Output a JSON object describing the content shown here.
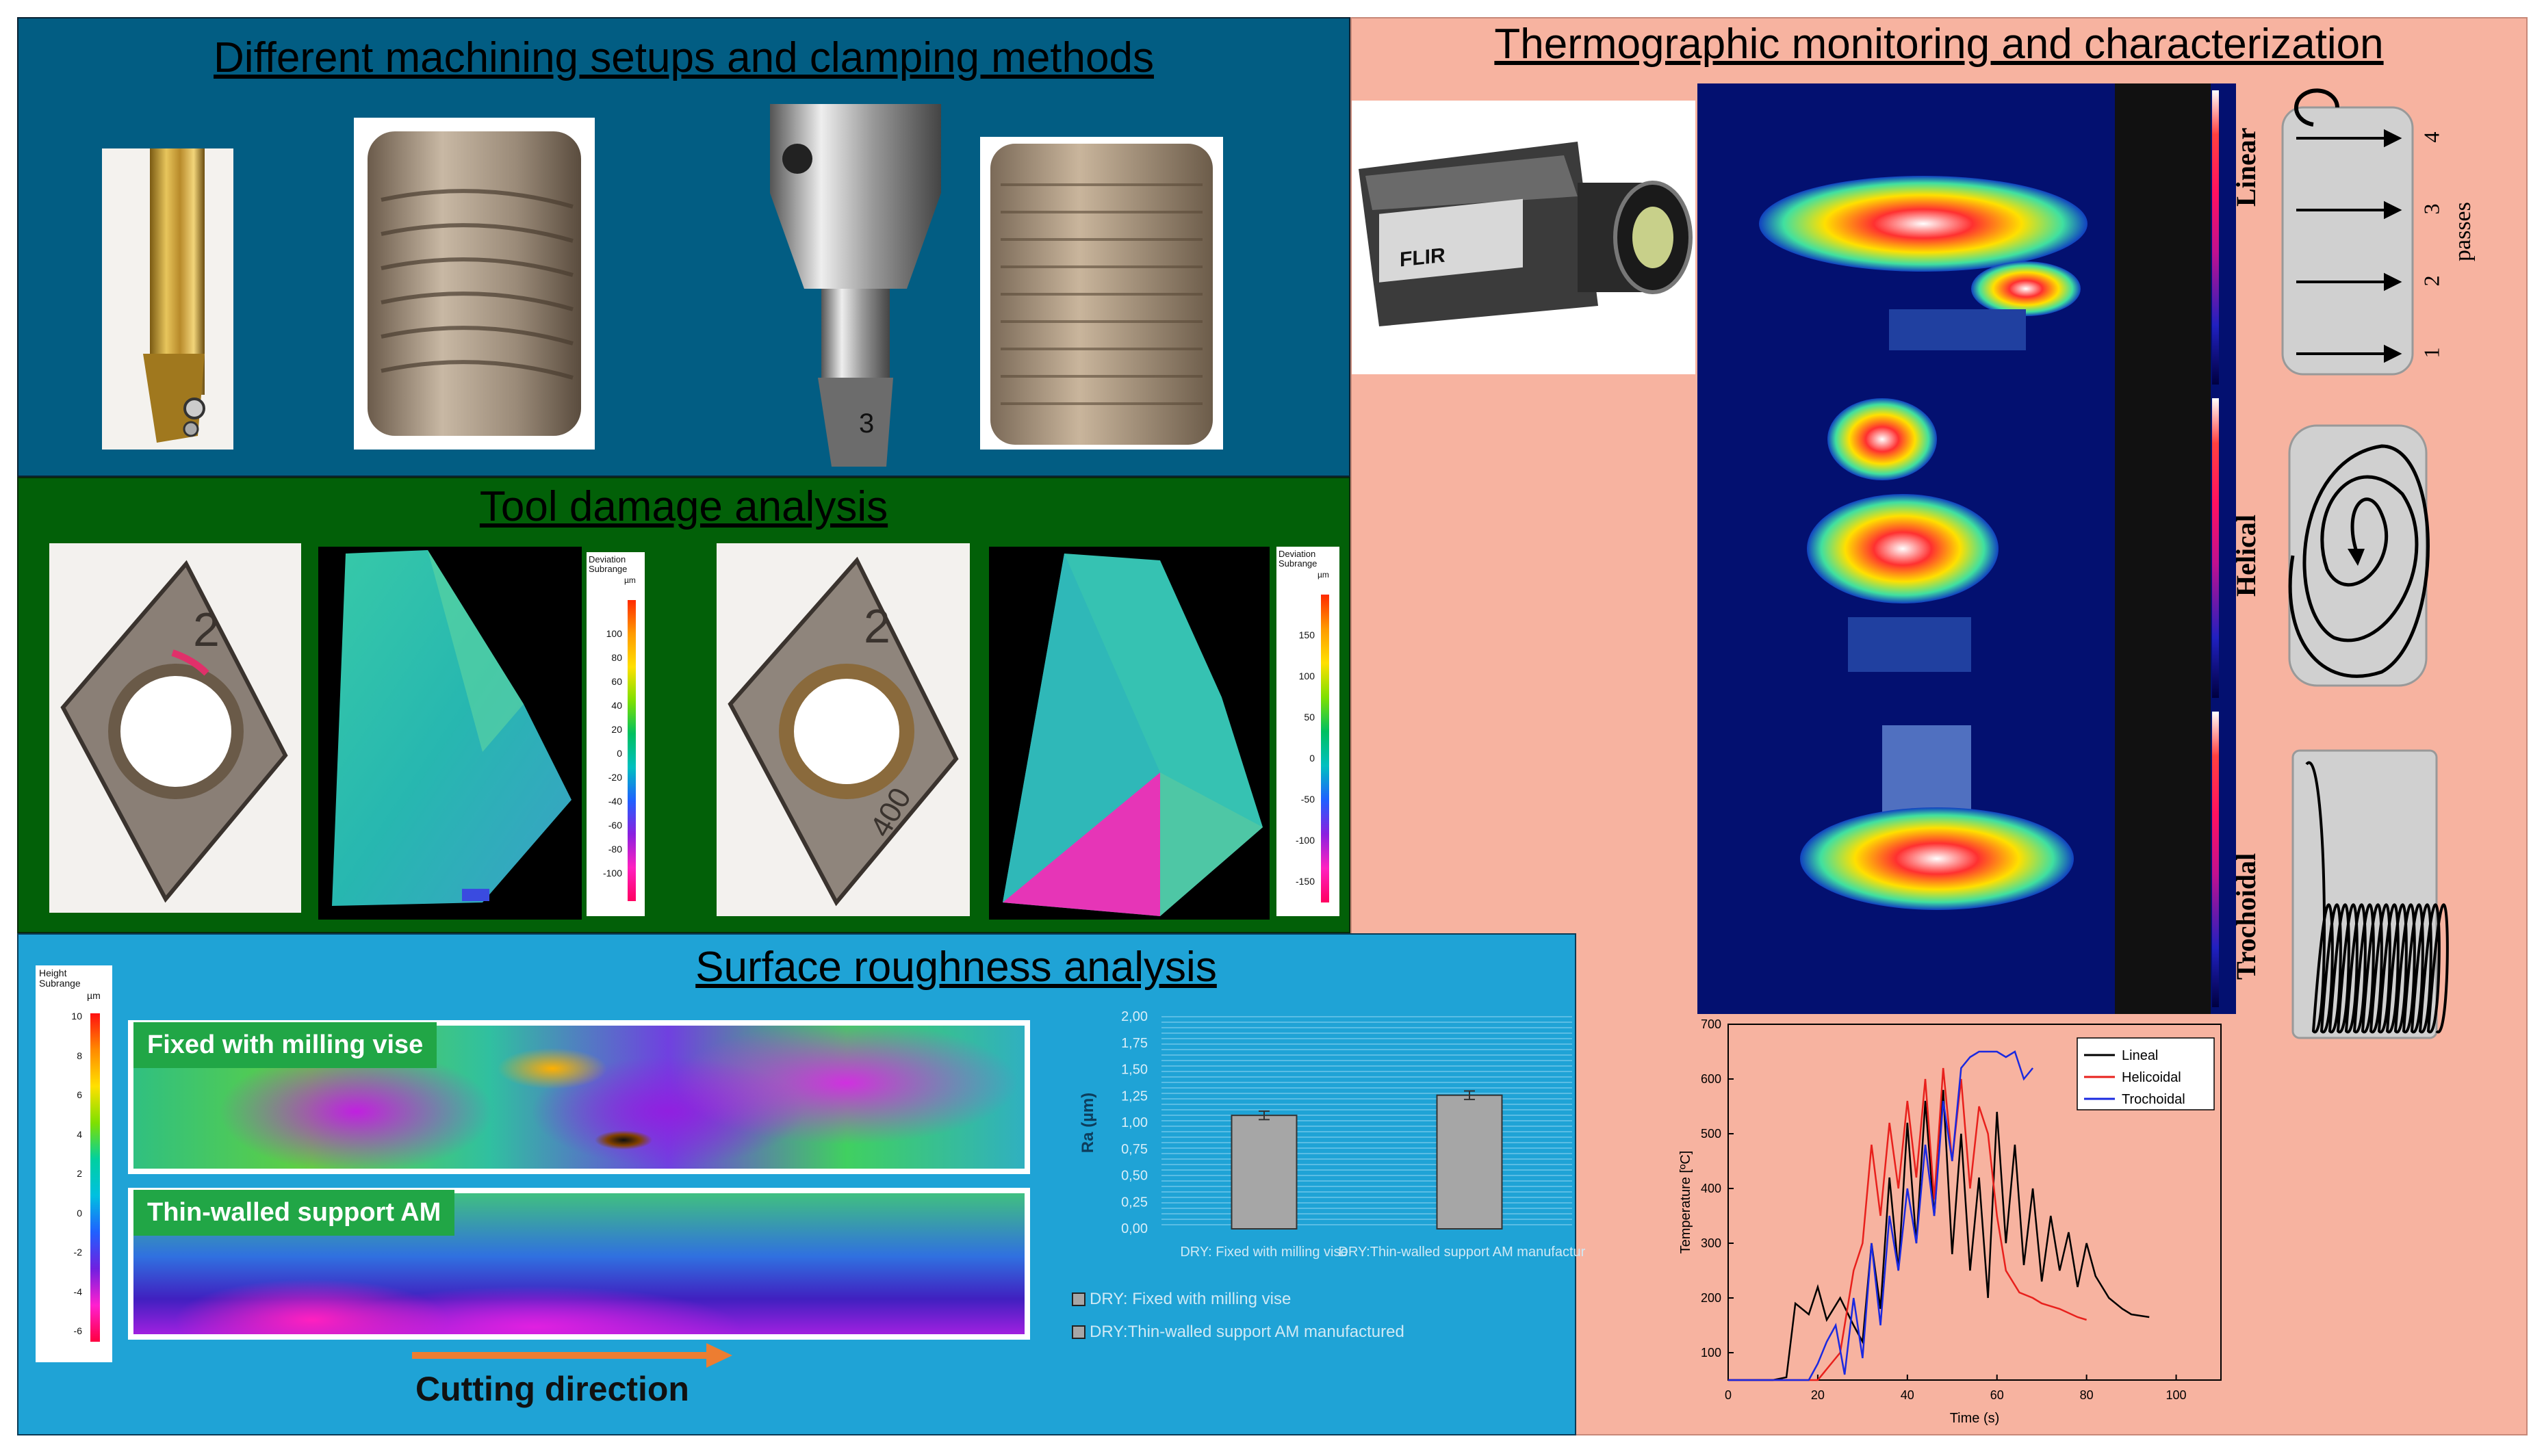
{
  "machining": {
    "title": "Different machining setups and clamping methods"
  },
  "thermo": {
    "title": "Thermographic monitoring and characterization",
    "camera_brand": "FLIR",
    "strategies": [
      "Linear",
      "Helical",
      "Trochoidal"
    ],
    "passes_label": "passes",
    "pass_numbers": [
      "1",
      "2",
      "3",
      "4"
    ]
  },
  "tool_damage": {
    "title": "Tool damage analysis",
    "legend_title": "Deviation Subrange",
    "legend_unit": "µm",
    "legend_ticks_a": [
      "100",
      "80",
      "60",
      "40",
      "20",
      "0",
      "-20",
      "-40",
      "-60",
      "-80",
      "-100"
    ],
    "legend_ticks_b": [
      "150",
      "100",
      "50",
      "0",
      "-50",
      "-100",
      "-150"
    ],
    "insert_marks": [
      "2",
      "400"
    ]
  },
  "roughness": {
    "title": "Surface roughness analysis",
    "legend_title": "Height Subrange",
    "legend_unit": "µm",
    "legend_ticks": [
      "10",
      "8",
      "6",
      "4",
      "2",
      "0",
      "-2",
      "-4",
      "-6"
    ],
    "map_labels": [
      "Fixed with milling vise",
      "Thin-walled support AM"
    ],
    "cutting_direction": "Cutting direction"
  },
  "colors": {
    "blue_panel": "#025d83",
    "green_panel": "#026008",
    "light_blue_panel": "#1fa3d6",
    "salmon_panel": "#f7b3a0",
    "arrow_orange": "#ed7d31",
    "lineal": "#000000",
    "helicoidal": "#e8201c",
    "trochoidal": "#1a29e0"
  },
  "chart_data": [
    {
      "type": "bar",
      "categories": [
        "DRY: Fixed with milling vise",
        "DRY:Thin-walled support AM manufactured"
      ],
      "values": [
        1.07,
        1.26
      ],
      "errors": [
        0.04,
        0.04
      ],
      "ylabel": "Ra (µm)",
      "ylim": [
        0,
        2.0
      ],
      "yticks": [
        "0,00",
        "0,25",
        "0,50",
        "0,75",
        "1,00",
        "1,25",
        "1,50",
        "1,75",
        "2,00"
      ],
      "legend": [
        "DRY: Fixed with milling vise",
        "DRY:Thin-walled support AM manufactured"
      ],
      "grid": true
    },
    {
      "type": "line",
      "xlabel": "Time (s)",
      "ylabel": "Temperature [ºC]",
      "xlim": [
        0,
        110
      ],
      "ylim": [
        50,
        700
      ],
      "xticks": [
        "0",
        "20",
        "40",
        "60",
        "80",
        "100"
      ],
      "yticks": [
        "100",
        "200",
        "300",
        "400",
        "500",
        "600",
        "700"
      ],
      "legend_position": "top-right",
      "series": [
        {
          "name": "Lineal",
          "x": [
            0,
            10,
            13,
            15,
            18,
            20,
            22,
            25,
            28,
            30,
            32,
            34,
            36,
            38,
            40,
            42,
            44,
            46,
            48,
            50,
            52,
            54,
            56,
            58,
            60,
            62,
            64,
            66,
            68,
            70,
            72,
            74,
            76,
            78,
            80,
            82,
            85,
            88,
            90,
            94
          ],
          "y": [
            50,
            50,
            55,
            190,
            170,
            220,
            160,
            200,
            150,
            120,
            300,
            180,
            420,
            250,
            520,
            300,
            560,
            350,
            580,
            280,
            500,
            250,
            420,
            200,
            540,
            300,
            480,
            260,
            400,
            230,
            350,
            250,
            320,
            220,
            300,
            240,
            200,
            180,
            170,
            165
          ]
        },
        {
          "name": "Helicoidal",
          "x": [
            0,
            20,
            25,
            28,
            30,
            32,
            34,
            36,
            38,
            40,
            42,
            44,
            46,
            48,
            50,
            52,
            54,
            56,
            58,
            60,
            62,
            65,
            68,
            70,
            74,
            78,
            80
          ],
          "y": [
            50,
            50,
            100,
            250,
            300,
            480,
            350,
            520,
            400,
            560,
            420,
            600,
            380,
            620,
            450,
            600,
            400,
            550,
            500,
            350,
            250,
            210,
            200,
            190,
            180,
            165,
            160
          ]
        },
        {
          "name": "Trochoidal",
          "x": [
            0,
            18,
            20,
            22,
            24,
            26,
            28,
            30,
            32,
            34,
            36,
            38,
            40,
            42,
            44,
            46,
            48,
            50,
            52,
            54,
            56,
            58,
            60,
            62,
            64,
            66,
            68
          ],
          "y": [
            50,
            50,
            80,
            120,
            150,
            60,
            200,
            90,
            300,
            150,
            350,
            250,
            400,
            300,
            480,
            350,
            560,
            450,
            620,
            640,
            650,
            650,
            650,
            640,
            650,
            600,
            620
          ]
        }
      ]
    }
  ]
}
